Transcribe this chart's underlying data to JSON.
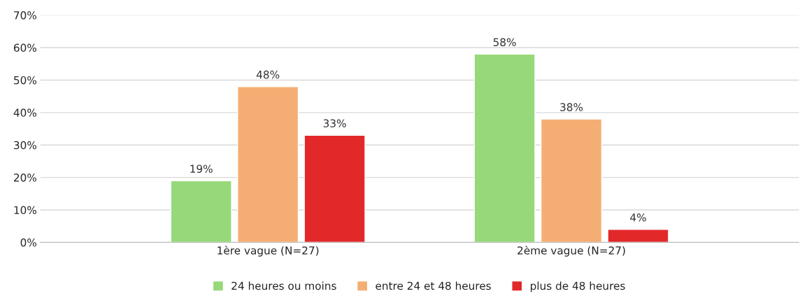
{
  "chart_data": {
    "type": "bar",
    "categories": [
      "1ère vague (N=27)",
      "2ème vague (N=27)"
    ],
    "series": [
      {
        "name": "24 heures ou moins",
        "color": "#97d97a",
        "values": [
          19,
          58
        ],
        "value_labels": [
          "19%",
          "58%"
        ]
      },
      {
        "name": "entre 24 et 48 heures",
        "color": "#f4ae73",
        "values": [
          48,
          38
        ],
        "value_labels": [
          "48%",
          "38%"
        ]
      },
      {
        "name": "plus de 48 heures",
        "color": "#e3282a",
        "values": [
          33,
          4
        ],
        "value_labels": [
          "33%",
          "4%"
        ]
      }
    ],
    "ylim": [
      0,
      70
    ],
    "yticks": [
      {
        "value": 0,
        "label": "0%"
      },
      {
        "value": 10,
        "label": "10%"
      },
      {
        "value": 20,
        "label": "20%"
      },
      {
        "value": 30,
        "label": "30%"
      },
      {
        "value": 40,
        "label": "40%"
      },
      {
        "value": 50,
        "label": "50%"
      },
      {
        "value": 60,
        "label": "60%"
      },
      {
        "value": 70,
        "label": "70%"
      }
    ],
    "grid": "y",
    "legend": "bottom"
  }
}
